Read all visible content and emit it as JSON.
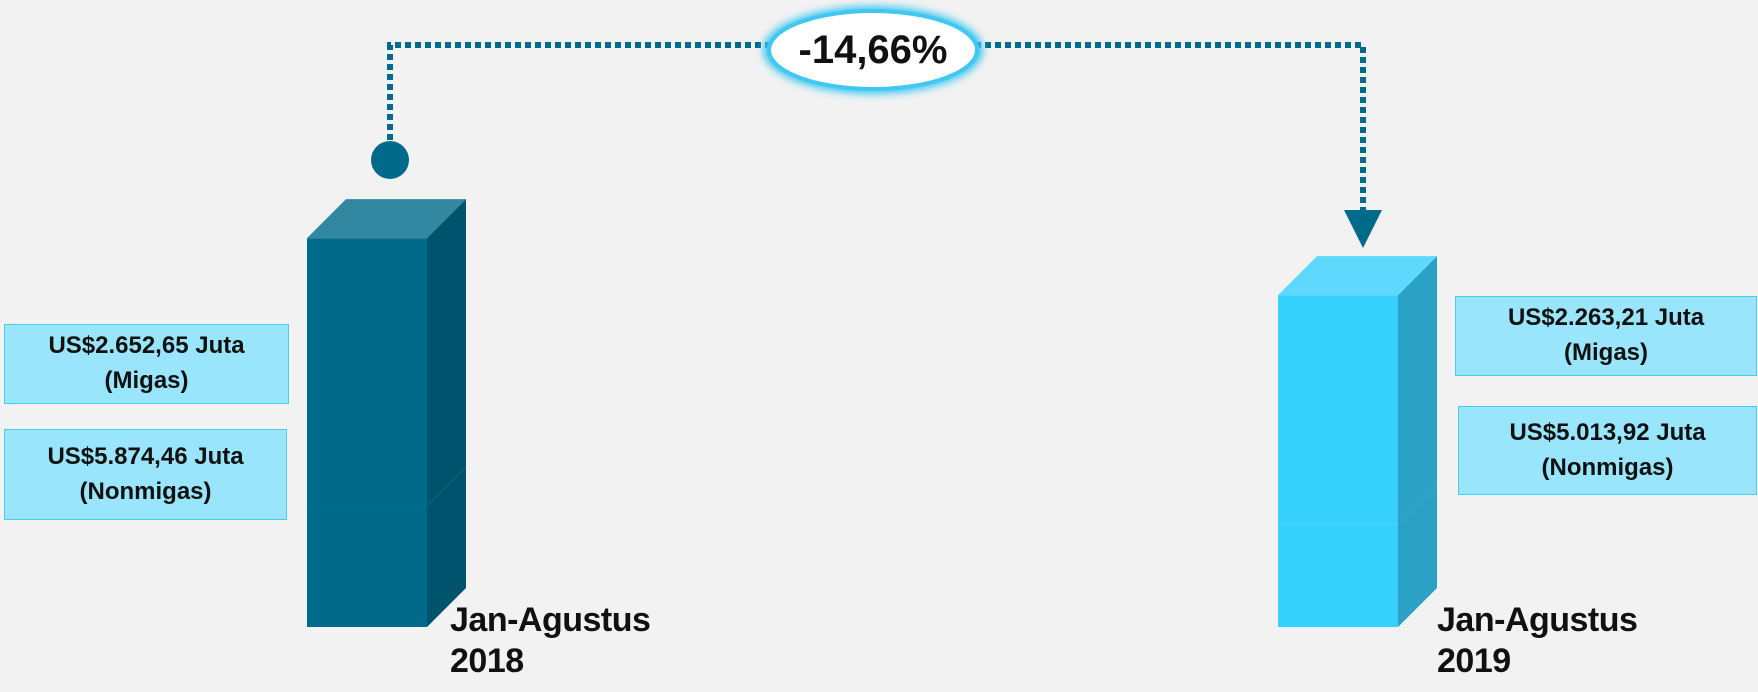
{
  "chart_data": {
    "type": "bar",
    "annotation": "-14,66%",
    "categories": [
      "Jan-Agustus 2018",
      "Jan-Agustus 2019"
    ],
    "colors": [
      "#006a8a",
      "#36d0fd"
    ],
    "series": [
      {
        "name": "(Migas)",
        "values": [
          2652.65,
          2263.21
        ],
        "value_labels": [
          "US$2.652,65 Juta",
          "US$2.263,21 Juta"
        ]
      },
      {
        "name": "(Nonmigas)",
        "values": [
          5874.46,
          5013.92
        ],
        "value_labels": [
          "US$5.874,46 Juta",
          "US$5.013,92 Juta"
        ]
      }
    ]
  }
}
